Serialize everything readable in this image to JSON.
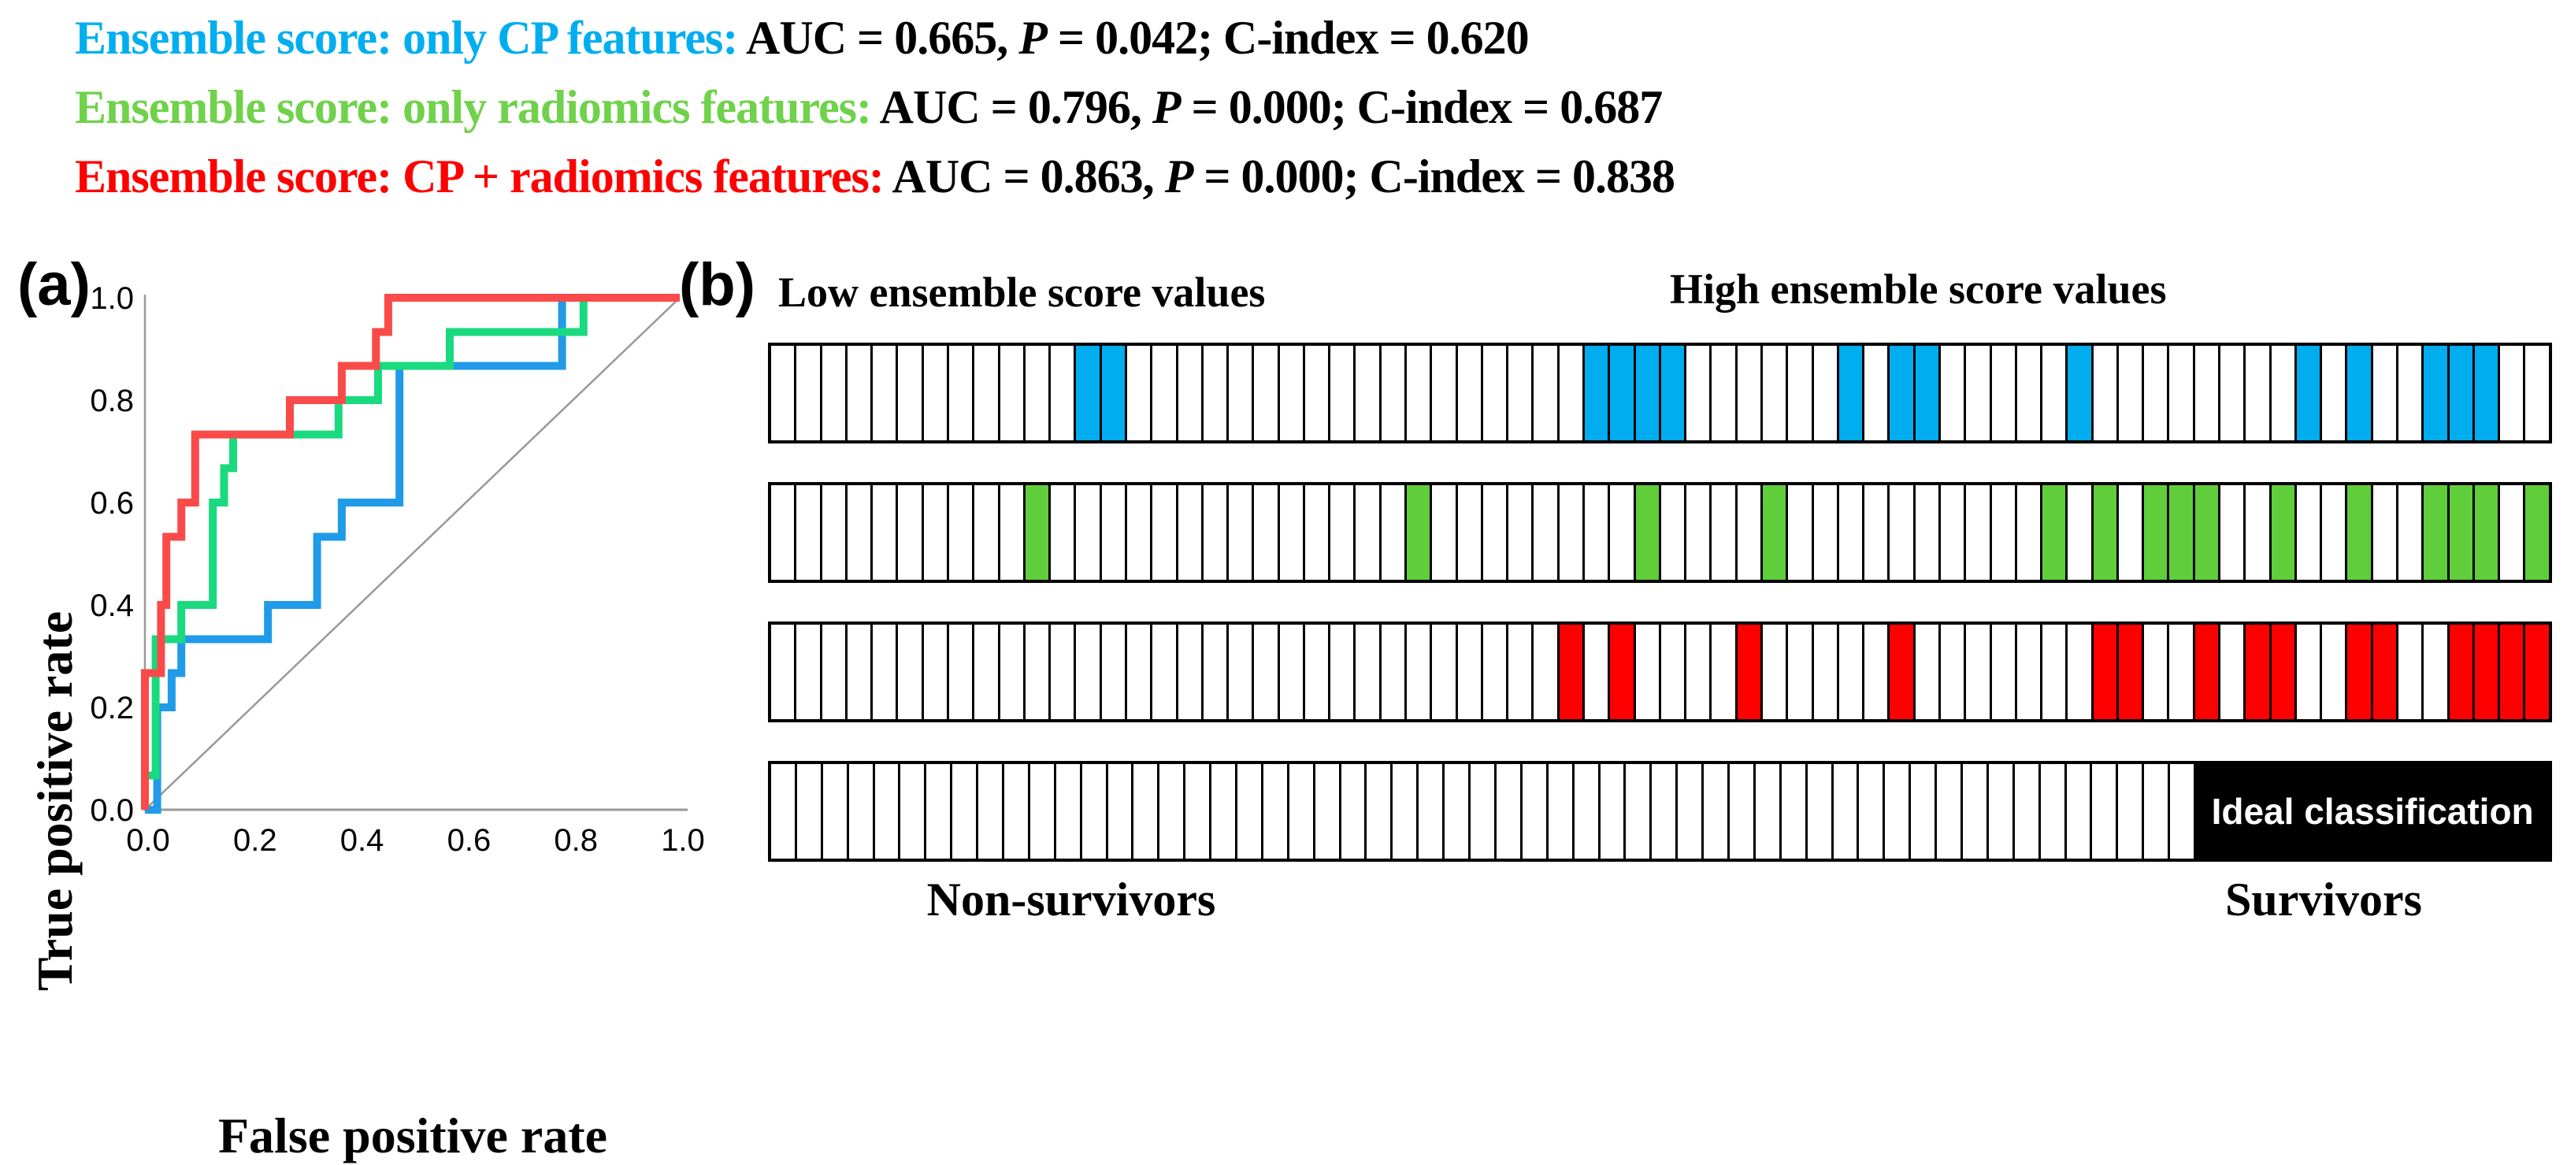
{
  "header": {
    "lines": [
      {
        "label": "Ensemble score: only CP features:",
        "color": "#00AEEF",
        "auc": "AUC = 0.665, ",
        "p": "P",
        "rest": " = 0.042; C-index = 0.620"
      },
      {
        "label": "Ensemble score: only radiomics features:",
        "color": "#6FD24A",
        "auc": "AUC = 0.796, ",
        "p": "P",
        "rest": " = 0.000; C-index = 0.687"
      },
      {
        "label": "Ensemble score: CP + radiomics features:",
        "color": "#FF0000",
        "auc": "AUC = 0.863, ",
        "p": "P",
        "rest": " = 0.000; C-index = 0.838"
      }
    ]
  },
  "panel_a": {
    "label": "(a)",
    "xlabel": "False positive rate",
    "ylabel": "True positive rate",
    "x_ticks": [
      "0.0",
      "0.2",
      "0.4",
      "0.6",
      "0.8",
      "1.0"
    ],
    "y_ticks": [
      "0.0",
      "0.2",
      "0.4",
      "0.6",
      "0.8",
      "1.0"
    ]
  },
  "panel_b": {
    "label": "(b)",
    "top_left_label": "Low ensemble score values",
    "top_right_label": "High ensemble score values",
    "bottom_left_label": "Non-survivors",
    "bottom_right_label": "Survivors",
    "ideal_label": "Ideal classification"
  },
  "chart_data": [
    {
      "type": "line",
      "title": "ROC curves",
      "xlabel": "False positive rate",
      "ylabel": "True positive rate",
      "xlim": [
        0,
        1
      ],
      "ylim": [
        0,
        1
      ],
      "grid": false,
      "legend": "none",
      "reference_line": {
        "from": [
          0,
          0
        ],
        "to": [
          1,
          1
        ],
        "color": "#999999"
      },
      "series": [
        {
          "name": "Ensemble score: only CP features",
          "auc": 0.665,
          "color": "#1F9BE8",
          "points": [
            [
              0,
              0
            ],
            [
              0.023,
              0
            ],
            [
              0.023,
              0.2
            ],
            [
              0.05,
              0.2
            ],
            [
              0.05,
              0.267
            ],
            [
              0.068,
              0.267
            ],
            [
              0.068,
              0.333
            ],
            [
              0.23,
              0.333
            ],
            [
              0.23,
              0.4
            ],
            [
              0.322,
              0.4
            ],
            [
              0.322,
              0.533
            ],
            [
              0.368,
              0.533
            ],
            [
              0.368,
              0.6
            ],
            [
              0.476,
              0.6
            ],
            [
              0.476,
              0.867
            ],
            [
              0.78,
              0.867
            ],
            [
              0.78,
              1
            ],
            [
              1,
              1
            ]
          ]
        },
        {
          "name": "Ensemble score: only radiomics features",
          "auc": 0.796,
          "color": "#19DA7E",
          "points": [
            [
              0,
              0
            ],
            [
              0,
              0.067
            ],
            [
              0.02,
              0.067
            ],
            [
              0.02,
              0.333
            ],
            [
              0.068,
              0.333
            ],
            [
              0.068,
              0.4
            ],
            [
              0.127,
              0.4
            ],
            [
              0.127,
              0.6
            ],
            [
              0.148,
              0.6
            ],
            [
              0.148,
              0.667
            ],
            [
              0.165,
              0.667
            ],
            [
              0.165,
              0.733
            ],
            [
              0.362,
              0.733
            ],
            [
              0.362,
              0.8
            ],
            [
              0.436,
              0.8
            ],
            [
              0.436,
              0.867
            ],
            [
              0.57,
              0.867
            ],
            [
              0.57,
              0.933
            ],
            [
              0.82,
              0.933
            ],
            [
              0.82,
              1
            ],
            [
              1,
              1
            ]
          ]
        },
        {
          "name": "Ensemble score: CP + radiomics features",
          "auc": 0.863,
          "color": "#FA4A4A",
          "points": [
            [
              0,
              0
            ],
            [
              0,
              0.267
            ],
            [
              0.03,
              0.267
            ],
            [
              0.03,
              0.4
            ],
            [
              0.04,
              0.4
            ],
            [
              0.04,
              0.533
            ],
            [
              0.068,
              0.533
            ],
            [
              0.068,
              0.6
            ],
            [
              0.094,
              0.6
            ],
            [
              0.094,
              0.733
            ],
            [
              0.271,
              0.733
            ],
            [
              0.271,
              0.8
            ],
            [
              0.368,
              0.8
            ],
            [
              0.368,
              0.867
            ],
            [
              0.432,
              0.867
            ],
            [
              0.432,
              0.933
            ],
            [
              0.455,
              0.933
            ],
            [
              0.455,
              1
            ],
            [
              1,
              1
            ]
          ]
        }
      ]
    },
    {
      "type": "heatmap",
      "title": "Patient classification strips ordered by ensemble score",
      "n_cells": 70,
      "rows": [
        {
          "name": "only CP features",
          "color": "#00ADEF",
          "colored_cells": [
            13,
            14,
            33,
            34,
            35,
            36,
            43,
            45,
            46,
            52,
            61,
            63,
            66,
            67,
            68
          ]
        },
        {
          "name": "only radiomics features",
          "color": "#5FCE3A",
          "colored_cells": [
            11,
            26,
            35,
            40,
            51,
            53,
            55,
            56,
            57,
            60,
            63,
            66,
            67,
            68,
            70
          ]
        },
        {
          "name": "CP + radiomics features",
          "color": "#FE0000",
          "colored_cells": [
            32,
            34,
            39,
            45,
            53,
            54,
            57,
            59,
            60,
            63,
            64,
            67,
            68,
            69,
            70
          ]
        },
        {
          "name": "ideal classification",
          "color": "#000000",
          "block_start": 56,
          "block_end": 70
        }
      ]
    }
  ]
}
